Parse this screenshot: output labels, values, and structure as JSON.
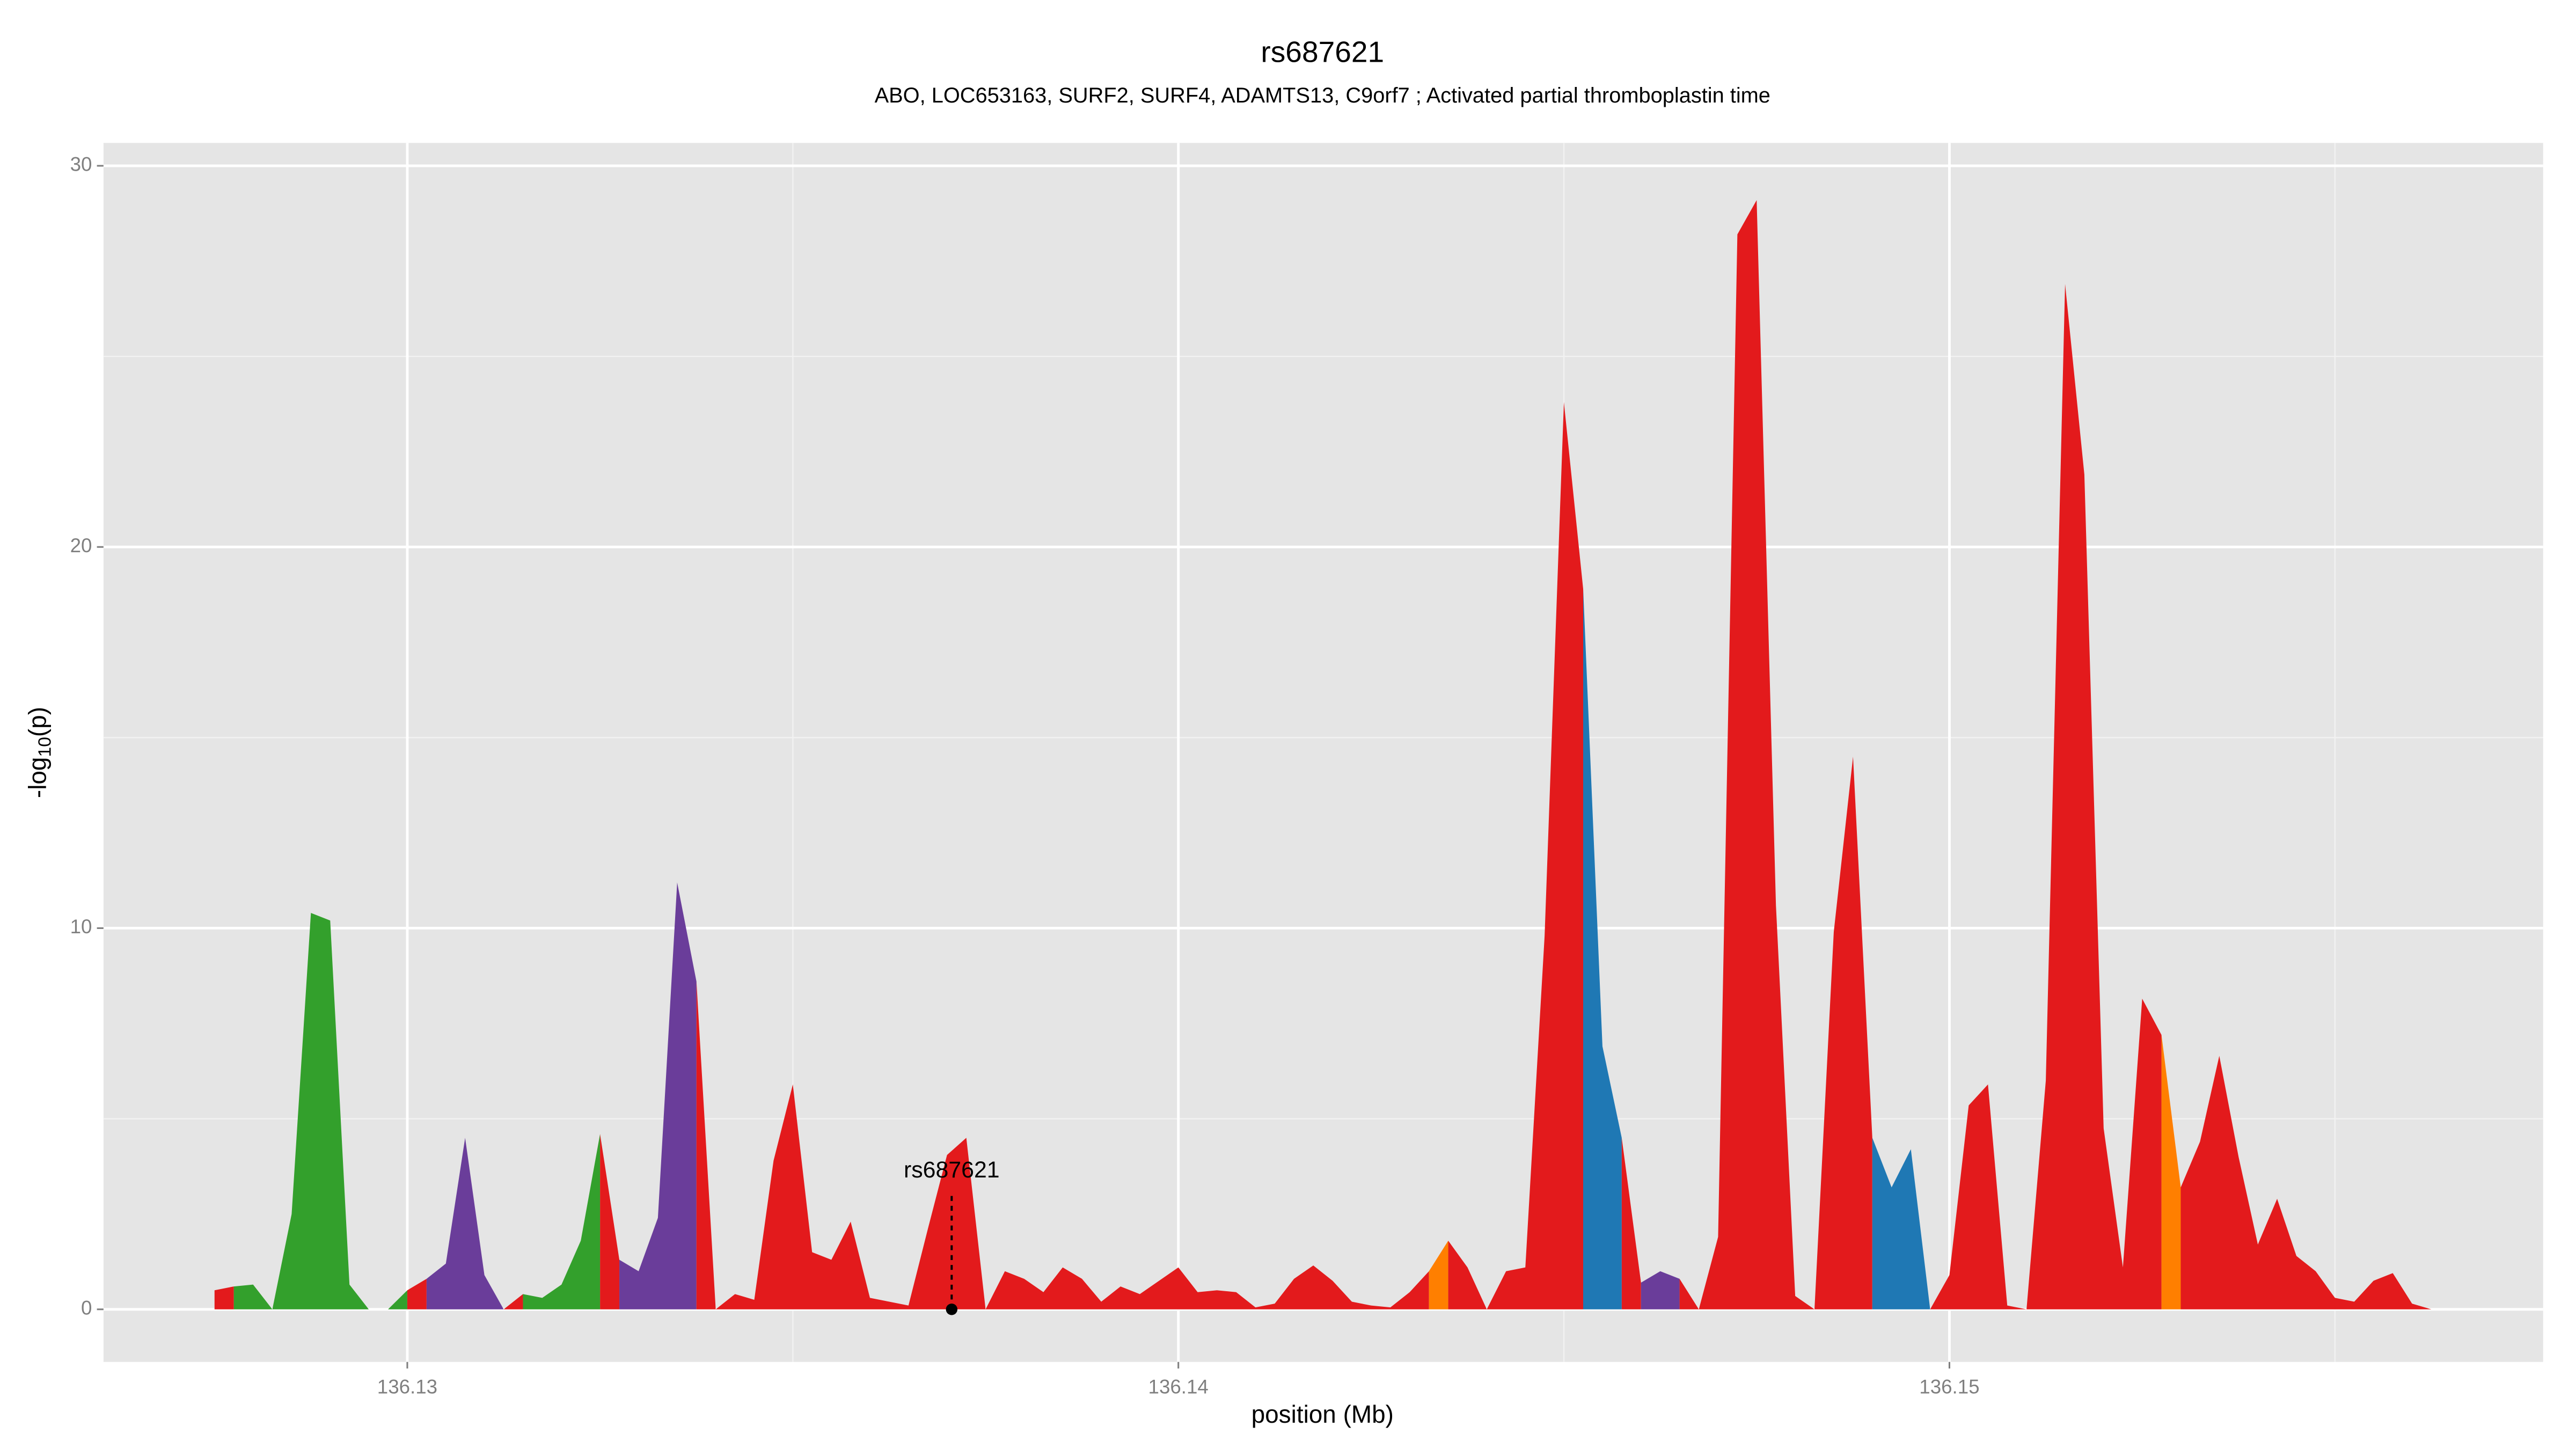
{
  "chart_data": {
    "type": "area",
    "title": "rs687621",
    "subtitle": "ABO, LOC653163, SURF2, SURF4, ADAMTS13, C9orf7 ; Activated partial thromboplastin time",
    "xlabel": "position (Mb)",
    "ylabel": [
      "-log",
      "10",
      "(p)"
    ],
    "xlim": [
      136.12606,
      136.1577
    ],
    "ylim": [
      -1.38,
      30.6
    ],
    "xticks": [
      136.13,
      136.14,
      136.15
    ],
    "yticks": [
      0,
      10,
      20,
      30
    ],
    "xminor": [
      136.135,
      136.145,
      136.155
    ],
    "yminor": [
      5,
      15,
      25
    ],
    "grid": true,
    "annotation": {
      "text": "rs687621",
      "x": 136.13706,
      "y": 0
    },
    "x": [
      136.1275,
      136.12775,
      136.128,
      136.12825,
      136.1285,
      136.12875,
      136.129,
      136.12925,
      136.1295,
      136.12975,
      136.13,
      136.13025,
      136.1305,
      136.13075,
      136.131,
      136.13125,
      136.1315,
      136.13175,
      136.132,
      136.13225,
      136.1325,
      136.13275,
      136.133,
      136.13325,
      136.1335,
      136.13375,
      136.134,
      136.13425,
      136.1345,
      136.13475,
      136.135,
      136.13525,
      136.1355,
      136.13575,
      136.136,
      136.13625,
      136.1365,
      136.13675,
      136.137,
      136.13725,
      136.1375,
      136.13775,
      136.138,
      136.13825,
      136.1385,
      136.13875,
      136.139,
      136.13925,
      136.1395,
      136.13975,
      136.14,
      136.14025,
      136.1405,
      136.14075,
      136.141,
      136.14125,
      136.1415,
      136.14175,
      136.142,
      136.14225,
      136.1425,
      136.14275,
      136.143,
      136.14325,
      136.1435,
      136.14375,
      136.144,
      136.14425,
      136.1445,
      136.14475,
      136.145,
      136.14525,
      136.1455,
      136.14575,
      136.146,
      136.14625,
      136.1465,
      136.14675,
      136.147,
      136.14725,
      136.1475,
      136.14775,
      136.148,
      136.14825,
      136.1485,
      136.14875,
      136.149,
      136.14925,
      136.1495,
      136.14975,
      136.15,
      136.15025,
      136.1505,
      136.15075,
      136.151,
      136.15125,
      136.1515,
      136.15175,
      136.152,
      136.15225,
      136.1525,
      136.15275,
      136.153,
      136.15325,
      136.1535,
      136.15375,
      136.154,
      136.15425,
      136.1545,
      136.15475,
      136.155,
      136.15525,
      136.1555,
      136.15575,
      136.156,
      136.15625
    ],
    "values": [
      0.5,
      0.6,
      0.65,
      0,
      2.5,
      10.4,
      10.2,
      0.65,
      0,
      0,
      0.5,
      0.8,
      1.2,
      4.5,
      0.9,
      0,
      0.4,
      0.3,
      0.65,
      1.8,
      4.6,
      1.3,
      1.0,
      2.4,
      11.2,
      8.6,
      0,
      0.4,
      0.25,
      3.9,
      5.9,
      1.5,
      1.3,
      2.3,
      0.3,
      0.2,
      0.1,
      2.1,
      4.05,
      4.5,
      0,
      1.0,
      0.8,
      0.45,
      1.1,
      0.8,
      0.2,
      0.6,
      0.4,
      0.75,
      1.1,
      0.45,
      0.5,
      0.45,
      0.05,
      0.15,
      0.8,
      1.15,
      0.75,
      0.2,
      0.1,
      0.05,
      0.45,
      1.0,
      1.8,
      1.1,
      0,
      1.0,
      1.1,
      9.8,
      23.8,
      18.9,
      6.9,
      4.5,
      0.7,
      1.0,
      0.8,
      0,
      1.9,
      28.2,
      29.1,
      10.6,
      0.35,
      0,
      9.9,
      14.5,
      4.5,
      3.2,
      4.2,
      0,
      0.9,
      5.35,
      5.9,
      0.1,
      0,
      6.0,
      26.9,
      21.9,
      4.75,
      1.1,
      8.15,
      7.2,
      3.2,
      4.4,
      6.65,
      4.0,
      1.7,
      2.9,
      1.4,
      1.0,
      0.3,
      0.2,
      0.75,
      0.95,
      0.15,
      0
    ],
    "colors": [
      "#e31a1c",
      "#33a02c",
      "#33a02c",
      "#33a02c",
      "#33a02c",
      "#33a02c",
      "#33a02c",
      "#33a02c",
      "#33a02c",
      "#33a02c",
      "#e31a1c",
      "#6a3d9a",
      "#6a3d9a",
      "#6a3d9a",
      "#6a3d9a",
      "#e31a1c",
      "#33a02c",
      "#33a02c",
      "#33a02c",
      "#33a02c",
      "#e31a1c",
      "#6a3d9a",
      "#6a3d9a",
      "#6a3d9a",
      "#6a3d9a",
      "#e31a1c",
      "#e31a1c",
      "#e31a1c",
      "#e31a1c",
      "#e31a1c",
      "#e31a1c",
      "#e31a1c",
      "#e31a1c",
      "#e31a1c",
      "#e31a1c",
      "#e31a1c",
      "#e31a1c",
      "#e31a1c",
      "#e31a1c",
      "#e31a1c",
      "#e31a1c",
      "#e31a1c",
      "#e31a1c",
      "#e31a1c",
      "#e31a1c",
      "#e31a1c",
      "#e31a1c",
      "#e31a1c",
      "#e31a1c",
      "#e31a1c",
      "#e31a1c",
      "#e31a1c",
      "#e31a1c",
      "#e31a1c",
      "#e31a1c",
      "#e31a1c",
      "#e31a1c",
      "#e31a1c",
      "#e31a1c",
      "#e31a1c",
      "#e31a1c",
      "#e31a1c",
      "#e31a1c",
      "#ff7f00",
      "#e31a1c",
      "#e31a1c",
      "#e31a1c",
      "#e31a1c",
      "#e31a1c",
      "#e31a1c",
      "#e31a1c",
      "#1f78b4",
      "#1f78b4",
      "#e31a1c",
      "#6a3d9a",
      "#6a3d9a",
      "#e31a1c",
      "#e31a1c",
      "#e31a1c",
      "#e31a1c",
      "#e31a1c",
      "#e31a1c",
      "#e31a1c",
      "#e31a1c",
      "#e31a1c",
      "#e31a1c",
      "#1f78b4",
      "#1f78b4",
      "#1f78b4",
      "#e31a1c",
      "#e31a1c",
      "#e31a1c",
      "#e31a1c",
      "#e31a1c",
      "#e31a1c",
      "#e31a1c",
      "#e31a1c",
      "#e31a1c",
      "#e31a1c",
      "#e31a1c",
      "#e31a1c",
      "#ff7f00",
      "#e31a1c",
      "#e31a1c",
      "#e31a1c",
      "#e31a1c",
      "#e31a1c",
      "#e31a1c",
      "#e31a1c",
      "#e31a1c",
      "#e31a1c",
      "#e31a1c",
      "#e31a1c",
      "#e31a1c",
      "#e31a1c",
      "#e31a1c"
    ]
  }
}
